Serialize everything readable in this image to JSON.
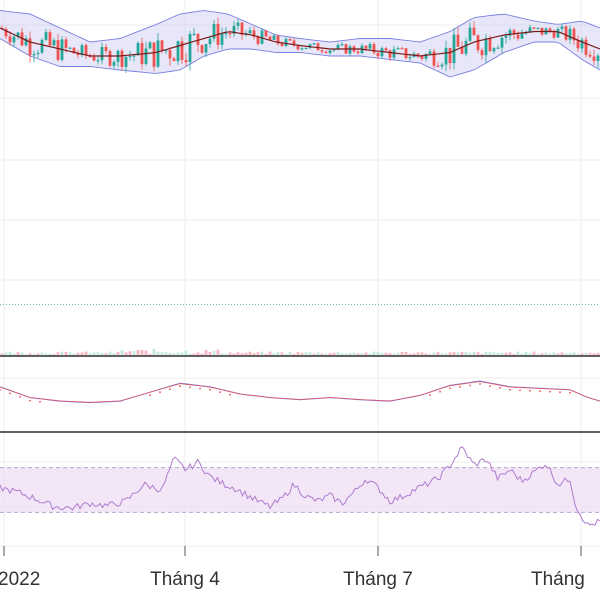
{
  "colors": {
    "up": "#26a69a",
    "down": "#ef5350",
    "band_line": "#7b7fe0",
    "band_fill": "#c9c9f2",
    "ma": "#7a1c1c",
    "rsi_line": "#b07bcf",
    "rsi_fill": "#efe0f5",
    "grid": "#eeeeee",
    "separator": "#2b2b2b",
    "ref_line": "#64c8b4",
    "text": "#333333"
  },
  "chart_data": [
    {
      "type": "candlestick",
      "panel": "price",
      "overlays": [
        "bollinger_bands",
        "moving_average"
      ],
      "x": [
        {
          "key": "jan",
          "label": "2022"
        },
        {
          "key": "apr",
          "label": "Tháng 4"
        },
        {
          "key": "jul",
          "label": "Tháng 7"
        },
        {
          "key": "oct",
          "label": "Tháng"
        }
      ],
      "y_range": [
        0,
        100
      ],
      "reference_line": 13,
      "grid": true,
      "ma": [
        [
          0.0,
          92
        ],
        [
          0.05,
          88
        ],
        [
          0.1,
          86
        ],
        [
          0.15,
          84
        ],
        [
          0.2,
          84
        ],
        [
          0.26,
          85
        ],
        [
          0.3,
          87
        ],
        [
          0.34,
          89
        ],
        [
          0.38,
          91
        ],
        [
          0.42,
          90
        ],
        [
          0.46,
          88
        ],
        [
          0.5,
          87
        ],
        [
          0.55,
          86
        ],
        [
          0.6,
          86
        ],
        [
          0.65,
          85
        ],
        [
          0.7,
          84
        ],
        [
          0.75,
          85
        ],
        [
          0.79,
          88
        ],
        [
          0.84,
          90
        ],
        [
          0.89,
          91
        ],
        [
          0.93,
          91
        ],
        [
          0.97,
          88
        ],
        [
          1.0,
          86
        ]
      ],
      "band_upper": [
        [
          0.0,
          97
        ],
        [
          0.05,
          96
        ],
        [
          0.1,
          92
        ],
        [
          0.15,
          88
        ],
        [
          0.2,
          89
        ],
        [
          0.26,
          93
        ],
        [
          0.3,
          96
        ],
        [
          0.34,
          97
        ],
        [
          0.38,
          96
        ],
        [
          0.42,
          93
        ],
        [
          0.46,
          90
        ],
        [
          0.5,
          89
        ],
        [
          0.55,
          88
        ],
        [
          0.6,
          89
        ],
        [
          0.65,
          89
        ],
        [
          0.7,
          88
        ],
        [
          0.75,
          91
        ],
        [
          0.79,
          95
        ],
        [
          0.84,
          96
        ],
        [
          0.89,
          94
        ],
        [
          0.93,
          93
        ],
        [
          0.97,
          94
        ],
        [
          1.0,
          92
        ]
      ],
      "band_lower": [
        [
          0.0,
          89
        ],
        [
          0.05,
          84
        ],
        [
          0.1,
          81
        ],
        [
          0.15,
          81
        ],
        [
          0.2,
          80
        ],
        [
          0.26,
          79
        ],
        [
          0.3,
          80
        ],
        [
          0.34,
          84
        ],
        [
          0.38,
          86
        ],
        [
          0.42,
          86
        ],
        [
          0.46,
          85
        ],
        [
          0.5,
          85
        ],
        [
          0.55,
          84
        ],
        [
          0.6,
          84
        ],
        [
          0.65,
          83
        ],
        [
          0.7,
          82
        ],
        [
          0.75,
          78
        ],
        [
          0.79,
          80
        ],
        [
          0.84,
          85
        ],
        [
          0.89,
          88
        ],
        [
          0.93,
          88
        ],
        [
          0.97,
          83
        ],
        [
          1.0,
          80
        ]
      ]
    },
    {
      "type": "line",
      "panel": "indicator",
      "series": [
        [
          0.0,
          60
        ],
        [
          0.05,
          45
        ],
        [
          0.1,
          40
        ],
        [
          0.15,
          38
        ],
        [
          0.2,
          40
        ],
        [
          0.26,
          55
        ],
        [
          0.3,
          65
        ],
        [
          0.35,
          60
        ],
        [
          0.4,
          50
        ],
        [
          0.45,
          45
        ],
        [
          0.5,
          42
        ],
        [
          0.55,
          45
        ],
        [
          0.6,
          42
        ],
        [
          0.65,
          40
        ],
        [
          0.7,
          48
        ],
        [
          0.75,
          62
        ],
        [
          0.8,
          68
        ],
        [
          0.85,
          60
        ],
        [
          0.9,
          58
        ],
        [
          0.95,
          56
        ],
        [
          0.98,
          45
        ],
        [
          1.0,
          40
        ]
      ]
    },
    {
      "type": "area",
      "panel": "rsi",
      "bands": [
        30,
        70
      ],
      "y_range": [
        0,
        100
      ],
      "series": [
        [
          0.0,
          52
        ],
        [
          0.03,
          48
        ],
        [
          0.06,
          42
        ],
        [
          0.09,
          35
        ],
        [
          0.12,
          34
        ],
        [
          0.15,
          38
        ],
        [
          0.18,
          36
        ],
        [
          0.21,
          40
        ],
        [
          0.24,
          55
        ],
        [
          0.27,
          50
        ],
        [
          0.29,
          78
        ],
        [
          0.31,
          68
        ],
        [
          0.33,
          75
        ],
        [
          0.35,
          62
        ],
        [
          0.37,
          56
        ],
        [
          0.39,
          52
        ],
        [
          0.41,
          46
        ],
        [
          0.43,
          40
        ],
        [
          0.45,
          35
        ],
        [
          0.47,
          42
        ],
        [
          0.49,
          55
        ],
        [
          0.51,
          44
        ],
        [
          0.53,
          40
        ],
        [
          0.55,
          45
        ],
        [
          0.57,
          38
        ],
        [
          0.59,
          48
        ],
        [
          0.61,
          60
        ],
        [
          0.63,
          52
        ],
        [
          0.65,
          40
        ],
        [
          0.67,
          44
        ],
        [
          0.69,
          50
        ],
        [
          0.71,
          55
        ],
        [
          0.73,
          60
        ],
        [
          0.75,
          72
        ],
        [
          0.77,
          88
        ],
        [
          0.79,
          72
        ],
        [
          0.81,
          78
        ],
        [
          0.83,
          60
        ],
        [
          0.85,
          68
        ],
        [
          0.87,
          58
        ],
        [
          0.89,
          66
        ],
        [
          0.91,
          74
        ],
        [
          0.93,
          55
        ],
        [
          0.95,
          60
        ],
        [
          0.96,
          35
        ],
        [
          0.98,
          18
        ],
        [
          1.0,
          22
        ]
      ]
    }
  ]
}
